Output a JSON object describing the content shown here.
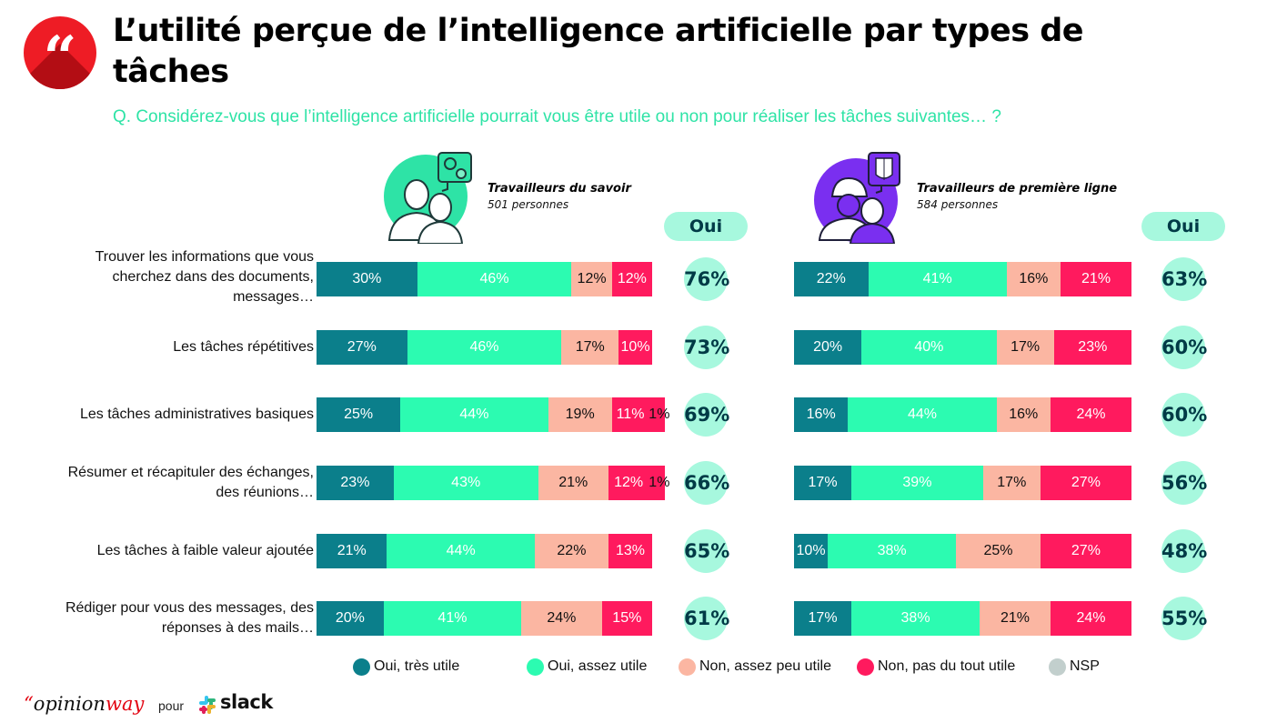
{
  "header": {
    "badge_icon": "quote-icon",
    "badge_glyph": "“",
    "title": "L’utilité perçue de l’intelligence artificielle par types de tâches",
    "question": "Q. Considérez-vous que l’intelligence artificielle pourrait vous être utile ou non pour réaliser les tâches suivantes… ?"
  },
  "colors": {
    "oui_tres_utile": "#0b7f8b",
    "oui_assez_utile": "#2cfbb1",
    "non_assez_peu_utile": "#fbb6a2",
    "non_pas_du_tout_utile": "#ff1a5e",
    "nsp": "#c2cfcd",
    "oui_badge_bg": "#a7f8de",
    "oui_badge_text": "#003a46",
    "question_text": "#2ee3a6",
    "brand_red": "#ee1c25"
  },
  "groups": [
    {
      "title": "Travailleurs du savoir",
      "subtitle": "501 personnes",
      "icon": "knowledge-workers-icon",
      "icon_color": "#2ee3a6",
      "oui_label": "Oui"
    },
    {
      "title": "Travailleurs de première ligne",
      "subtitle": "584 personnes",
      "icon": "frontline-workers-icon",
      "icon_color": "#7a2ff0",
      "oui_label": "Oui"
    }
  ],
  "chart_data": {
    "type": "bar",
    "orientation": "horizontal-stacked-100",
    "title": "L’utilité perçue de l’intelligence artificielle par types de tâches",
    "categories": [
      "Trouver les informations que vous cherchez dans des documents, messages…",
      "Les tâches répétitives",
      "Les tâches administratives basiques",
      "Résumer et récapituler des échanges, des réunions…",
      "Les tâches à faible valeur ajoutée",
      "Rédiger pour vous des messages, des réponses à des mails…"
    ],
    "category_lines": [
      [
        "Trouver les informations que vous",
        "cherchez dans des documents,",
        "messages…"
      ],
      [
        "Les tâches répétitives"
      ],
      [
        "Les tâches administratives basiques"
      ],
      [
        "Résumer et récapituler des échanges,",
        "des réunions…"
      ],
      [
        "Les tâches à faible valeur ajoutée"
      ],
      [
        "Rédiger pour vous des messages, des",
        "réponses à des mails…"
      ]
    ],
    "series_names": [
      "Oui, très utile",
      "Oui, assez utile",
      "Non, assez peu utile",
      "Non, pas du tout utile",
      "NSP"
    ],
    "legend_position": "bottom",
    "xlim": [
      0,
      100
    ],
    "unit": "%",
    "panels": [
      {
        "name": "Travailleurs du savoir",
        "series": [
          {
            "name": "Oui, très utile",
            "values": [
              30,
              27,
              25,
              23,
              21,
              20
            ]
          },
          {
            "name": "Oui, assez utile",
            "values": [
              46,
              46,
              44,
              43,
              44,
              41
            ]
          },
          {
            "name": "Non, assez peu utile",
            "values": [
              12,
              17,
              19,
              21,
              22,
              24
            ]
          },
          {
            "name": "Non, pas du tout utile",
            "values": [
              12,
              10,
              11,
              12,
              13,
              15
            ]
          },
          {
            "name": "NSP",
            "values": [
              0,
              0,
              1,
              1,
              0,
              0
            ]
          }
        ],
        "oui_totals": [
          76,
          73,
          69,
          66,
          65,
          61
        ]
      },
      {
        "name": "Travailleurs de première ligne",
        "series": [
          {
            "name": "Oui, très utile",
            "values": [
              22,
              20,
              16,
              17,
              10,
              17
            ]
          },
          {
            "name": "Oui, assez utile",
            "values": [
              41,
              40,
              44,
              39,
              38,
              38
            ]
          },
          {
            "name": "Non, assez peu utile",
            "values": [
              16,
              17,
              16,
              17,
              25,
              21
            ]
          },
          {
            "name": "Non, pas du tout utile",
            "values": [
              21,
              23,
              24,
              27,
              27,
              24
            ]
          },
          {
            "name": "NSP",
            "values": [
              0,
              0,
              0,
              0,
              0,
              0
            ]
          }
        ],
        "oui_totals": [
          63,
          60,
          60,
          56,
          48,
          55
        ]
      }
    ]
  },
  "legend": [
    {
      "label": "Oui, très utile",
      "color": "#0b7f8b"
    },
    {
      "label": "Oui, assez utile",
      "color": "#2cfbb1"
    },
    {
      "label": "Non, assez peu utile",
      "color": "#fbb6a2"
    },
    {
      "label": "Non, pas du tout utile",
      "color": "#ff1a5e"
    },
    {
      "label": "NSP",
      "color": "#c2cfcd"
    }
  ],
  "footer": {
    "opinionway_quote": "“",
    "opinionway_main": "opinion",
    "opinionway_accent": "way",
    "pour": "pour",
    "slack": "slack"
  }
}
